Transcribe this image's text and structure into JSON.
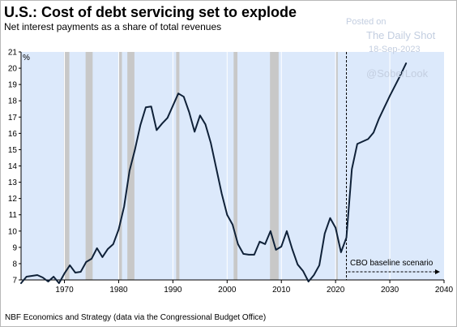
{
  "header": {
    "title": "U.S.: Cost of debt servicing set to explode",
    "subtitle": "Net interest payments as a share of total revenues"
  },
  "footer": {
    "source": "NBF Economics and Strategy (data via the Congressional Budget Office)"
  },
  "watermark": {
    "line1": "Posted on",
    "line2": "The Daily Shot",
    "line3": "18-Sep-2023",
    "line4": "@SoberLook"
  },
  "chart_data": {
    "type": "line",
    "title": "U.S.: Cost of debt servicing set to explode",
    "subtitle": "Net interest payments as a share of total revenues",
    "y_unit_label": "%",
    "xlim": [
      1962,
      2040
    ],
    "ylim": [
      7,
      21
    ],
    "x_ticks": [
      1970,
      1980,
      1990,
      2000,
      2010,
      2020,
      2030,
      2040
    ],
    "y_ticks": [
      7,
      8,
      9,
      10,
      11,
      12,
      13,
      14,
      15,
      16,
      17,
      18,
      19,
      20,
      21
    ],
    "grid": "vertical",
    "background_color": "#dce9fb",
    "line_color": "#0f2138",
    "recession_color": "#c8c8c8",
    "recessions": [
      [
        1969.9,
        1970.9
      ],
      [
        1973.9,
        1975.2
      ],
      [
        1980.0,
        1980.6
      ],
      [
        1981.6,
        1982.9
      ],
      [
        1990.6,
        1991.2
      ],
      [
        2001.2,
        2001.9
      ],
      [
        2007.9,
        2009.5
      ],
      [
        2020.1,
        2020.4
      ]
    ],
    "projection_start": 2022,
    "annotation": {
      "text": "CBO baseline scenario",
      "y": 7.5
    },
    "series": [
      {
        "x": [
          1962,
          1963,
          1964,
          1965,
          1966,
          1967,
          1968,
          1969,
          1970,
          1971,
          1972,
          1973,
          1974,
          1975,
          1976,
          1977,
          1978,
          1979,
          1980,
          1981,
          1982,
          1983,
          1984,
          1985,
          1986,
          1987,
          1988,
          1989,
          1990,
          1991,
          1992,
          1993,
          1994,
          1995,
          1996,
          1997,
          1998,
          1999,
          2000,
          2001,
          2002,
          2003,
          2004,
          2005,
          2006,
          2007,
          2008,
          2009,
          2010,
          2011,
          2012,
          2013,
          2014,
          2015,
          2016,
          2017,
          2018,
          2019,
          2020,
          2021,
          2022,
          2023,
          2024,
          2025,
          2026,
          2027,
          2028,
          2029,
          2030,
          2031,
          2032,
          2033
        ],
        "values": [
          6.8,
          7.2,
          7.25,
          7.3,
          7.15,
          6.9,
          7.2,
          6.8,
          7.4,
          7.9,
          7.45,
          7.5,
          8.1,
          8.3,
          8.95,
          8.4,
          8.9,
          9.2,
          10.1,
          11.5,
          13.7,
          15.0,
          16.5,
          17.6,
          17.65,
          16.2,
          16.6,
          16.95,
          17.7,
          18.45,
          18.25,
          17.3,
          16.1,
          17.1,
          16.55,
          15.4,
          13.85,
          12.3,
          11.0,
          10.4,
          9.2,
          8.6,
          8.55,
          8.55,
          9.35,
          9.2,
          10.0,
          8.85,
          9.05,
          10.0,
          8.9,
          7.95,
          7.55,
          6.9,
          7.3,
          7.9,
          9.85,
          10.8,
          10.2,
          8.7,
          9.6,
          13.8,
          15.35,
          15.5,
          15.65,
          16.05,
          16.9,
          17.6,
          18.3,
          18.95,
          19.6,
          20.3
        ]
      }
    ]
  }
}
